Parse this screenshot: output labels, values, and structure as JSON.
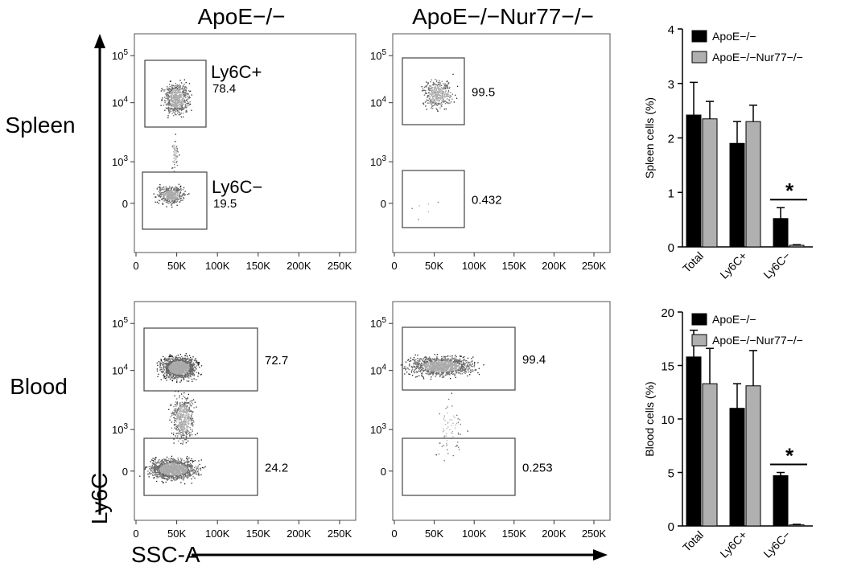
{
  "titles": {
    "col1": "ApoE−/−",
    "col2": "ApoE−/−Nur77−/−",
    "row1": "Spleen",
    "row2": "Blood",
    "y_axis": "Ly6C",
    "x_axis": "SSC-A"
  },
  "flow": {
    "x_ticks": [
      "0",
      "50K",
      "100K",
      "150K",
      "200K",
      "250K"
    ],
    "y_ticks": [
      "105",
      "104",
      "103",
      "0"
    ],
    "panels": [
      {
        "gates": [
          {
            "name": "Ly6C+",
            "value": "78.4"
          },
          {
            "name": "Ly6C−",
            "value": "19.5"
          }
        ]
      },
      {
        "gates": [
          {
            "name": "",
            "value": "99.5"
          },
          {
            "name": "",
            "value": "0.432"
          }
        ]
      },
      {
        "gates": [
          {
            "name": "",
            "value": "72.7"
          },
          {
            "name": "",
            "value": "24.2"
          }
        ]
      },
      {
        "gates": [
          {
            "name": "",
            "value": "99.4"
          },
          {
            "name": "",
            "value": "0.253"
          }
        ]
      }
    ]
  },
  "colors": {
    "apoe": "#000000",
    "nur77": "#b0b0b0"
  },
  "chart_data": [
    {
      "type": "bar",
      "ylabel": "Spleen cells (%)",
      "categories": [
        "Total",
        "Ly6C+",
        "Ly6C−"
      ],
      "ylim": [
        0,
        4
      ],
      "yticks": [
        0,
        1,
        2,
        3,
        4
      ],
      "series": [
        {
          "name": "ApoE−/−",
          "values": [
            2.42,
            1.9,
            0.52
          ],
          "errors": [
            0.6,
            0.4,
            0.2
          ]
        },
        {
          "name": "ApoE−/−Nur77−/−",
          "values": [
            2.35,
            2.3,
            0.03
          ],
          "errors": [
            0.32,
            0.3,
            0.01
          ]
        }
      ],
      "significance": {
        "category": "Ly6C−",
        "label": "*"
      },
      "legend_position": "top-right"
    },
    {
      "type": "bar",
      "ylabel": "Blood cells (%)",
      "categories": [
        "Total",
        "Ly6C+",
        "Ly6C−"
      ],
      "ylim": [
        0,
        20
      ],
      "yticks": [
        0,
        5,
        10,
        15,
        20
      ],
      "series": [
        {
          "name": "ApoE−/−",
          "values": [
            15.8,
            11.0,
            4.7
          ],
          "errors": [
            2.5,
            2.3,
            0.3
          ]
        },
        {
          "name": "ApoE−/−Nur77−/−",
          "values": [
            13.3,
            13.1,
            0.1
          ],
          "errors": [
            3.3,
            3.3,
            0.05
          ]
        }
      ],
      "significance": {
        "category": "Ly6C−",
        "label": "*"
      },
      "legend_position": "top-right"
    }
  ]
}
